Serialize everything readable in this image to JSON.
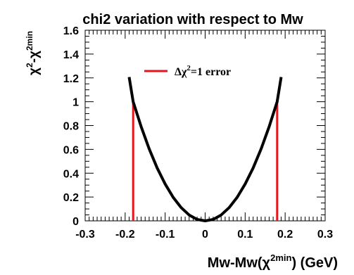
{
  "chart_data": {
    "type": "line",
    "title": "chi2 variation with respect to Mw",
    "xlabel": {
      "base": "Mw-Mw(χ",
      "sup": "2",
      "sub": "min",
      "tail": ") (GeV)"
    },
    "ylabel": {
      "chi": "χ",
      "sup1": "2",
      "mid": "-χ",
      "sup2": "2",
      "sub2": "min"
    },
    "xlim": [
      -0.3,
      0.3
    ],
    "ylim": [
      0,
      1.6
    ],
    "xticks": [
      -0.3,
      -0.2,
      -0.1,
      0,
      0.1,
      0.2,
      0.3
    ],
    "xtick_labels": [
      "-0.3",
      "-0.2",
      "-0.1",
      "0",
      "0.1",
      "0.2",
      "0.3"
    ],
    "yticks": [
      0,
      0.2,
      0.4,
      0.6,
      0.8,
      1,
      1.2,
      1.4,
      1.6
    ],
    "ytick_labels": [
      "0",
      "0.2",
      "0.4",
      "0.6",
      "0.8",
      "1",
      "1.2",
      "1.4",
      "1.6"
    ],
    "grid": false,
    "series": [
      {
        "color": "#000000",
        "x": [
          -0.19,
          -0.18,
          -0.16,
          -0.14,
          -0.12,
          -0.1,
          -0.08,
          -0.06,
          -0.04,
          -0.02,
          0,
          0.02,
          0.04,
          0.06,
          0.08,
          0.1,
          0.12,
          0.14,
          0.16,
          0.18,
          0.19
        ],
        "y": [
          1.207,
          1.0,
          0.79,
          0.605,
          0.444,
          0.309,
          0.198,
          0.111,
          0.049,
          0.012,
          0,
          0.012,
          0.049,
          0.111,
          0.198,
          0.309,
          0.444,
          0.605,
          0.79,
          1.0,
          1.207
        ]
      }
    ],
    "error_lines": {
      "label_prefix": "Δχ",
      "label_sup": "2",
      "label_suffix": "=1 error",
      "color": "#e8141c",
      "x": [
        -0.18,
        0.18
      ],
      "y_top": 1.0
    },
    "legend_position": "top-center"
  }
}
